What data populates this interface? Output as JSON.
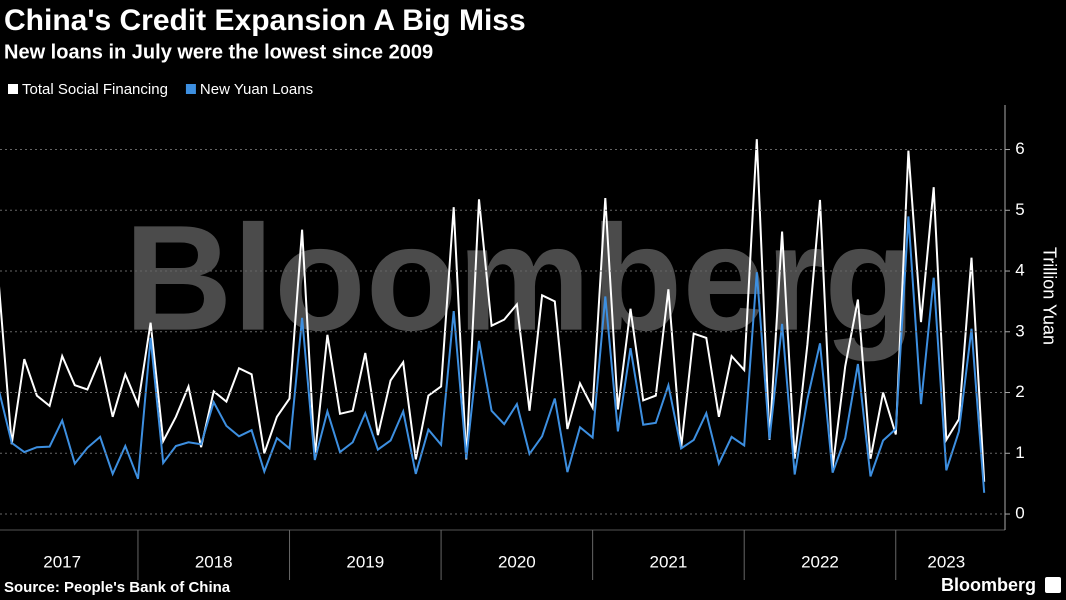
{
  "chart_data": {
    "type": "line",
    "title": "China's Credit Expansion A Big Miss",
    "subtitle": "New loans in July were the lowest since 2009",
    "y_axis_label": "Trillion Yuan",
    "watermark": "Bloomberg",
    "source": "Source: People's Bank of China",
    "brand": "Bloomberg",
    "categories": [
      null,
      null,
      null,
      null,
      null,
      "2017",
      null,
      null,
      null,
      null,
      null,
      null,
      null,
      null,
      null,
      null,
      null,
      "2018",
      null,
      null,
      null,
      null,
      null,
      null,
      null,
      null,
      null,
      null,
      null,
      "2019",
      null,
      null,
      null,
      null,
      null,
      null,
      null,
      null,
      null,
      null,
      null,
      "2020",
      null,
      null,
      null,
      null,
      null,
      null,
      null,
      null,
      null,
      null,
      null,
      "2021",
      null,
      null,
      null,
      null,
      null,
      null,
      null,
      null,
      null,
      null,
      null,
      "2022",
      null,
      null,
      null,
      null,
      null,
      null,
      null,
      null,
      null,
      "2023",
      null,
      null,
      null
    ],
    "series": [
      {
        "name": "Total Social Financing",
        "color": "#ffffff",
        "values": [
          3.75,
          1.15,
          2.55,
          1.95,
          1.78,
          2.6,
          2.12,
          2.05,
          2.55,
          1.6,
          2.3,
          1.8,
          3.15,
          1.2,
          1.6,
          2.1,
          1.1,
          2.02,
          1.85,
          2.4,
          2.3,
          1.0,
          1.6,
          1.9,
          4.68,
          0.95,
          2.95,
          1.65,
          1.7,
          2.65,
          1.3,
          2.2,
          2.5,
          0.9,
          1.95,
          2.1,
          5.05,
          0.9,
          5.18,
          3.1,
          3.2,
          3.45,
          1.7,
          3.6,
          3.5,
          1.4,
          2.15,
          1.75,
          5.2,
          1.72,
          3.38,
          1.87,
          1.95,
          3.7,
          1.08,
          2.97,
          2.9,
          1.6,
          2.6,
          2.37,
          6.17,
          1.22,
          4.65,
          0.91,
          2.79,
          5.17,
          0.76,
          2.43,
          3.53,
          0.91,
          2.0,
          1.31,
          5.98,
          3.16,
          5.38,
          1.22,
          1.56,
          4.22,
          0.53
        ]
      },
      {
        "name": "New Yuan Loans",
        "color": "#3d8fe0",
        "values": [
          2.03,
          1.17,
          1.02,
          1.1,
          1.11,
          1.54,
          0.83,
          1.09,
          1.27,
          0.66,
          1.12,
          0.58,
          2.9,
          0.84,
          1.12,
          1.18,
          1.15,
          1.84,
          1.45,
          1.28,
          1.38,
          0.7,
          1.25,
          1.08,
          3.23,
          0.89,
          1.69,
          1.02,
          1.18,
          1.66,
          1.06,
          1.21,
          1.69,
          0.66,
          1.39,
          1.14,
          3.34,
          0.91,
          2.85,
          1.7,
          1.48,
          1.81,
          0.99,
          1.28,
          1.9,
          0.69,
          1.43,
          1.26,
          3.58,
          1.36,
          2.73,
          1.47,
          1.5,
          2.12,
          1.08,
          1.22,
          1.66,
          0.83,
          1.27,
          1.13,
          3.98,
          1.23,
          3.13,
          0.65,
          1.89,
          2.81,
          0.68,
          1.25,
          2.47,
          0.62,
          1.21,
          1.4,
          4.9,
          1.81,
          3.89,
          0.72,
          1.36,
          3.05,
          0.35
        ]
      }
    ],
    "ylim": [
      -0.23,
      6.7
    ],
    "yticks": [
      0,
      1,
      2,
      3,
      4,
      5,
      6
    ],
    "grid": true
  }
}
